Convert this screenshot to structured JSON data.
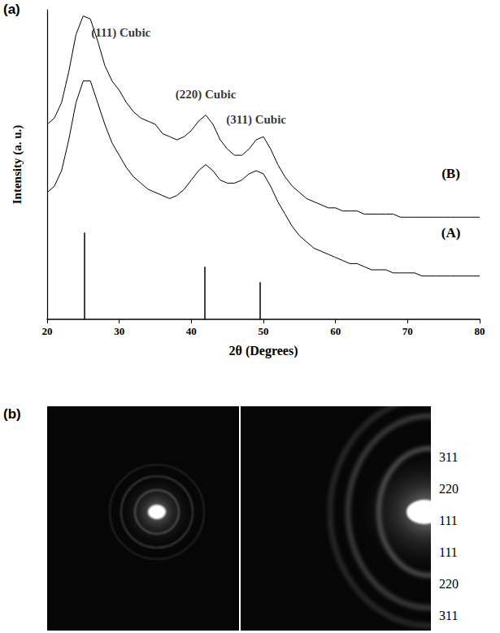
{
  "chart_data": {
    "type": "line",
    "panel": "(a)",
    "xlabel": "2θ (Degrees)",
    "ylabel": "Intensity (a. u.)",
    "xlim": [
      20,
      80
    ],
    "xticks": [
      20,
      30,
      40,
      50,
      60,
      70,
      80
    ],
    "ylim": [
      0,
      100
    ],
    "yticks": [],
    "tick_labels": "x",
    "grid": false,
    "x": [
      20,
      21,
      22,
      23,
      24,
      25,
      26,
      27,
      28,
      29,
      30,
      31,
      32,
      33,
      34,
      35,
      36,
      37,
      38,
      39,
      40,
      41,
      42,
      43,
      44,
      45,
      46,
      47,
      48,
      49,
      50,
      51,
      52,
      53,
      54,
      55,
      56,
      57,
      58,
      59,
      60,
      61,
      62,
      63,
      64,
      65,
      66,
      67,
      68,
      69,
      70,
      71,
      72,
      73,
      74,
      75,
      76,
      77,
      78,
      79,
      80
    ],
    "series": [
      {
        "name": "(B)",
        "color": "#000000",
        "values": [
          63,
          65,
          70,
          80,
          92,
          98,
          97,
          90,
          82,
          77,
          74,
          70,
          67,
          65,
          64,
          63,
          60,
          59,
          58,
          59,
          61,
          64,
          66,
          63,
          58,
          55,
          53,
          53,
          55,
          58,
          59,
          55,
          50,
          46,
          43,
          41,
          39,
          38,
          37,
          36,
          36,
          35,
          35,
          35,
          34,
          34,
          34,
          34,
          34,
          33,
          33,
          33,
          33,
          33,
          33,
          33,
          33,
          33,
          33,
          33,
          33
        ]
      },
      {
        "name": "(A)",
        "color": "#000000",
        "values": [
          41,
          43,
          48,
          58,
          70,
          77,
          77,
          70,
          63,
          57,
          53,
          49,
          46,
          44,
          42,
          41,
          40,
          39,
          40,
          42,
          45,
          48,
          50,
          48,
          45,
          44,
          44,
          45,
          47,
          48,
          47,
          43,
          38,
          34,
          30,
          27,
          25,
          23,
          22,
          21,
          20,
          19,
          18,
          18,
          17,
          16,
          16,
          16,
          15,
          15,
          15,
          15,
          14,
          14,
          14,
          14,
          14,
          14,
          14,
          14,
          14
        ]
      }
    ],
    "reference_pattern": {
      "x": [
        25.2,
        41.8,
        49.5
      ],
      "values": [
        28,
        17,
        12
      ]
    },
    "annotations": [
      {
        "text": "(111) Cubic",
        "x": 25
      },
      {
        "text": "(220) Cubic",
        "x": 42
      },
      {
        "text": "(311) Cubic",
        "x": 49
      }
    ]
  },
  "diffraction_panel": {
    "panel": "(b)",
    "ring_labels": [
      "311",
      "220",
      "111",
      "111",
      "220",
      "311"
    ]
  }
}
